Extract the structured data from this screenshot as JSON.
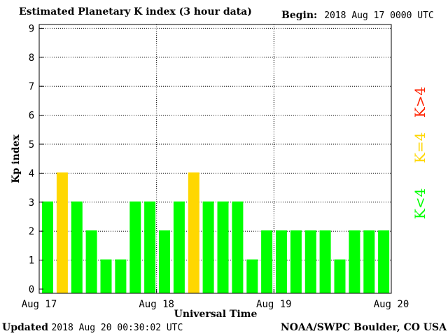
{
  "header": {
    "title": "Estimated Planetary K index (3 hour data)",
    "begin_label": "Begin:",
    "begin_value": "2018 Aug 17 0000 UTC"
  },
  "footer": {
    "updated_label": "Updated",
    "updated_value": "2018 Aug 20 00:30:02 UTC",
    "credit": "NOAA/SWPC Boulder, CO USA"
  },
  "colors": {
    "below_storm": "#00ff00",
    "storm_threshold": "#ffd700",
    "storm": "#ff2200"
  },
  "legend": [
    {
      "label": "K<4",
      "color": "#00ff00"
    },
    {
      "label": "K=4",
      "color": "#ffd700"
    },
    {
      "label": "K>4",
      "color": "#ff2200"
    }
  ],
  "chart_data": {
    "type": "bar",
    "title": "Estimated Planetary K index (3 hour data)",
    "xlabel": "Universal Time",
    "ylabel": "Kp index",
    "ylim": [
      0,
      9
    ],
    "yticks": [
      0,
      1,
      2,
      3,
      4,
      5,
      6,
      7,
      8,
      9
    ],
    "x_tick_labels": [
      "Aug 17",
      "Aug 18",
      "Aug 19",
      "Aug 20"
    ],
    "grid": true,
    "legend_position": "right",
    "values": [
      3,
      4,
      3,
      2,
      1,
      1,
      3,
      3,
      2,
      3,
      4,
      3,
      3,
      3,
      1,
      2,
      2,
      2,
      2,
      2,
      1,
      2,
      2,
      2
    ]
  }
}
